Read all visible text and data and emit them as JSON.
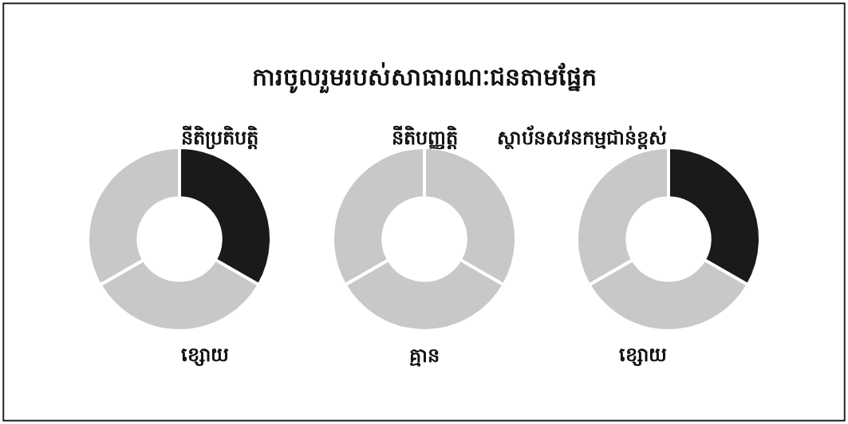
{
  "chart_data": [
    {
      "type": "other",
      "title": "ការចូលរួមរបស់សាធារណៈជនតាមផ្នែក"
    },
    {
      "type": "donut",
      "subtitle": "នីតិប្រតិបត្តិ",
      "categories": [
        null,
        null,
        null
      ],
      "values": [
        33.33,
        33.33,
        33.34
      ],
      "colors": [
        "#1a1a1a",
        "#c8c8c8",
        "#c8c8c8"
      ],
      "annotations": [
        "ខ្សោយ"
      ]
    },
    {
      "type": "donut",
      "subtitle": "នីតិបញ្ញត្តិ",
      "categories": [
        null,
        null,
        null
      ],
      "values": [
        33.33,
        33.33,
        33.34
      ],
      "colors": [
        "#c8c8c8",
        "#c8c8c8",
        "#c8c8c8"
      ],
      "annotations": [
        "គ្មាន"
      ]
    },
    {
      "type": "donut",
      "subtitle": "ស្ថាប័នសវនកម្មជាន់ខ្ពស់",
      "categories": [
        null,
        null,
        null
      ],
      "values": [
        33.33,
        33.33,
        33.34
      ],
      "colors": [
        "#1a1a1a",
        "#c8c8c8",
        "#c8c8c8"
      ],
      "annotations": [
        "ខ្សោយ"
      ]
    }
  ]
}
